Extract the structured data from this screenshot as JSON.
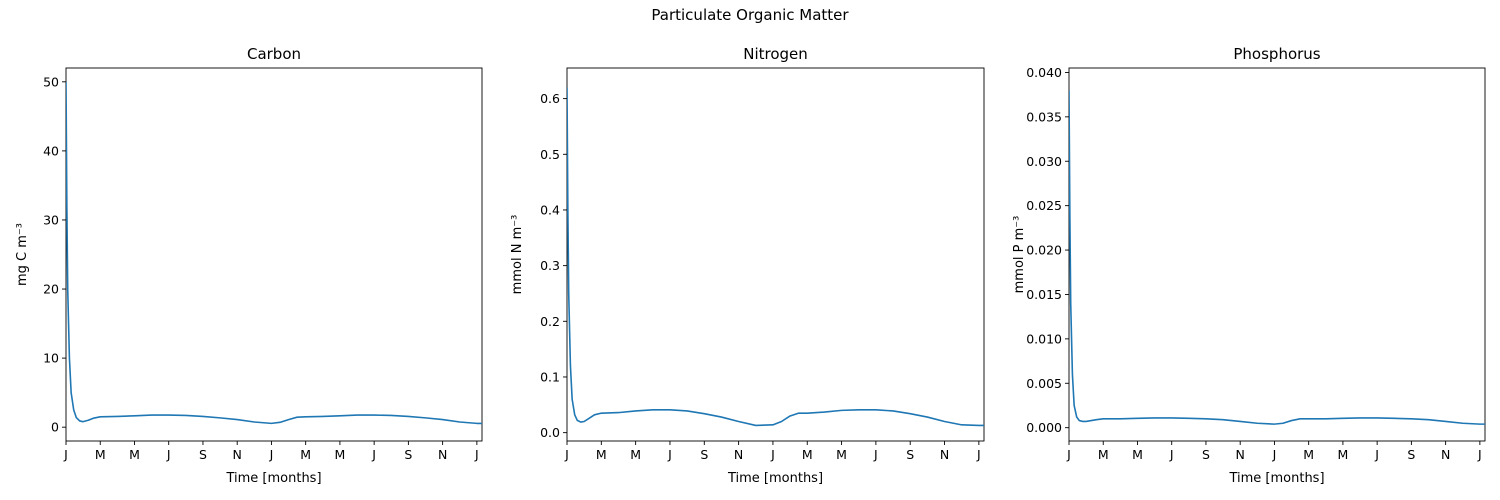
{
  "figure": {
    "title": "Particulate Organic Matter"
  },
  "chart_data": [
    {
      "type": "line",
      "title": "Carbon",
      "xlabel": "Time [months]",
      "ylabel": "mg C m⁻³",
      "ylim": [
        -2,
        52
      ],
      "yticks": [
        0,
        10,
        20,
        30,
        40,
        50
      ],
      "xlim": [
        0,
        24.3
      ],
      "xtick_labels": [
        "J",
        "M",
        "M",
        "J",
        "S",
        "N",
        "J",
        "M",
        "M",
        "J",
        "S",
        "N",
        "J"
      ],
      "grid": false,
      "line_color": "#1f77b4",
      "series": [
        {
          "x": [
            0,
            0.05,
            0.1,
            0.2,
            0.3,
            0.45,
            0.6,
            0.8,
            1.0,
            1.3,
            1.6,
            2.0,
            3.0,
            4.0,
            5.0,
            6.0,
            7.0,
            8.0,
            9.0,
            10.0,
            11.0,
            12.0,
            12.5,
            13.0,
            13.5,
            14.0,
            15.0,
            16.0,
            17.0,
            18.0,
            19.0,
            20.0,
            21.0,
            22.0,
            23.0,
            24.0,
            24.3
          ],
          "y": [
            50,
            32,
            20,
            10,
            5,
            2.5,
            1.4,
            0.9,
            0.8,
            1.0,
            1.3,
            1.5,
            1.55,
            1.65,
            1.75,
            1.75,
            1.7,
            1.55,
            1.35,
            1.1,
            0.75,
            0.55,
            0.7,
            1.1,
            1.45,
            1.5,
            1.55,
            1.65,
            1.75,
            1.75,
            1.7,
            1.55,
            1.35,
            1.1,
            0.75,
            0.55,
            0.55
          ]
        }
      ]
    },
    {
      "type": "line",
      "title": "Nitrogen",
      "xlabel": "Time [months]",
      "ylabel": "mmol N m⁻³",
      "ylim": [
        -0.015,
        0.655
      ],
      "yticks": [
        0.0,
        0.1,
        0.2,
        0.3,
        0.4,
        0.5,
        0.6
      ],
      "ytick_labels": [
        "0.0",
        "0.1",
        "0.2",
        "0.3",
        "0.4",
        "0.5",
        "0.6"
      ],
      "xlim": [
        0,
        24.3
      ],
      "xtick_labels": [
        "J",
        "M",
        "M",
        "J",
        "S",
        "N",
        "J",
        "M",
        "M",
        "J",
        "S",
        "N",
        "J"
      ],
      "grid": false,
      "line_color": "#1f77b4",
      "series": [
        {
          "x": [
            0,
            0.05,
            0.1,
            0.2,
            0.3,
            0.45,
            0.6,
            0.8,
            1.0,
            1.3,
            1.6,
            2.0,
            3.0,
            4.0,
            5.0,
            6.0,
            7.0,
            8.0,
            9.0,
            10.0,
            11.0,
            12.0,
            12.5,
            13.0,
            13.5,
            14.0,
            15.0,
            16.0,
            17.0,
            18.0,
            19.0,
            20.0,
            21.0,
            22.0,
            23.0,
            24.0,
            24.3
          ],
          "y": [
            0.62,
            0.4,
            0.25,
            0.12,
            0.06,
            0.032,
            0.022,
            0.019,
            0.02,
            0.026,
            0.032,
            0.035,
            0.036,
            0.039,
            0.041,
            0.041,
            0.039,
            0.034,
            0.028,
            0.02,
            0.013,
            0.014,
            0.02,
            0.03,
            0.035,
            0.035,
            0.037,
            0.04,
            0.041,
            0.041,
            0.039,
            0.034,
            0.028,
            0.02,
            0.014,
            0.013,
            0.013
          ]
        }
      ]
    },
    {
      "type": "line",
      "title": "Phosphorus",
      "xlabel": "Time [months]",
      "ylabel": "mmol P m⁻³",
      "ylim": [
        -0.0015,
        0.0405
      ],
      "yticks": [
        0.0,
        0.005,
        0.01,
        0.015,
        0.02,
        0.025,
        0.03,
        0.035,
        0.04
      ],
      "ytick_labels": [
        "0.000",
        "0.005",
        "0.010",
        "0.015",
        "0.020",
        "0.025",
        "0.030",
        "0.035",
        "0.040"
      ],
      "xlim": [
        0,
        24.3
      ],
      "xtick_labels": [
        "J",
        "M",
        "M",
        "J",
        "S",
        "N",
        "J",
        "M",
        "M",
        "J",
        "S",
        "N",
        "J"
      ],
      "grid": false,
      "line_color": "#1f77b4",
      "series": [
        {
          "x": [
            0,
            0.05,
            0.1,
            0.2,
            0.3,
            0.45,
            0.6,
            0.8,
            1.0,
            1.3,
            1.6,
            2.0,
            3.0,
            4.0,
            5.0,
            6.0,
            7.0,
            8.0,
            9.0,
            10.0,
            11.0,
            12.0,
            12.5,
            13.0,
            13.5,
            14.0,
            15.0,
            16.0,
            17.0,
            18.0,
            19.0,
            20.0,
            21.0,
            22.0,
            23.0,
            24.0,
            24.3
          ],
          "y": [
            0.038,
            0.024,
            0.014,
            0.006,
            0.0025,
            0.0012,
            0.0008,
            0.0007,
            0.0007,
            0.0008,
            0.0009,
            0.001,
            0.001,
            0.00105,
            0.0011,
            0.0011,
            0.00105,
            0.001,
            0.0009,
            0.0007,
            0.0005,
            0.0004,
            0.0005,
            0.0008,
            0.001,
            0.001,
            0.001,
            0.00105,
            0.0011,
            0.0011,
            0.00105,
            0.001,
            0.0009,
            0.0007,
            0.0005,
            0.0004,
            0.0004
          ]
        }
      ]
    }
  ]
}
